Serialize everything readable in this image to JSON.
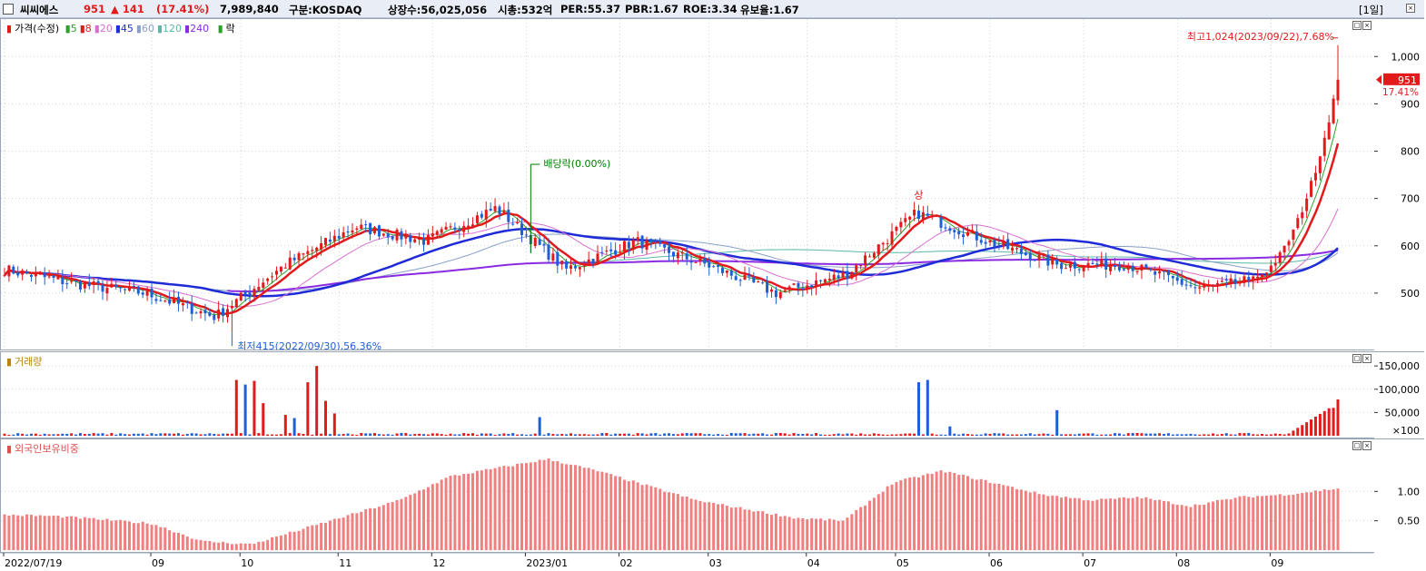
{
  "header": {
    "name": "씨씨에스",
    "price": "951",
    "change": "▲ 141",
    "change_pct": "(17.41%)",
    "volume": "7,989,840",
    "market": "구분:KOSDAQ",
    "shares": "상장수:56,025,056",
    "mcap": "시총:532억",
    "per": "PER:55.37",
    "pbr": "PBR:1.67",
    "roe": "ROE:3.34",
    "reserve": "유보율:1.67",
    "period": "[1일]"
  },
  "legend": {
    "price": "가격(수정)",
    "ma": [
      {
        "label": "5",
        "color": "#2ca02c"
      },
      {
        "label": "8",
        "color": "#e31a1c"
      },
      {
        "label": "20",
        "color": "#d86fd0"
      },
      {
        "label": "45",
        "color": "#1f2bd6"
      },
      {
        "label": "60",
        "color": "#8aa0c8"
      },
      {
        "label": "120",
        "color": "#5bb8a8"
      },
      {
        "label": "240",
        "color": "#8a2be2"
      }
    ],
    "drop": "락",
    "volume": "거래량",
    "foreign": "외국인보유비중"
  },
  "annotations": {
    "high": "최고1,024(2023/09/22),7.68%",
    "low": "최저415(2022/09/30),56.36%",
    "dividend": "배당락(0.00%)",
    "limit_up": "상"
  },
  "price_box": {
    "value": "951",
    "pct": "17.41%"
  },
  "colors": {
    "up": "#e31a1c",
    "down": "#1f5fd6",
    "foreign_bar": "#f08080"
  },
  "chart_data": [
    {
      "type": "candlestick",
      "title": "",
      "ylim": [
        400,
        1060
      ],
      "y_ticks": [
        "1,000",
        "900",
        "800",
        "700",
        "600",
        "500"
      ],
      "y_tick_values": [
        1000,
        900,
        800,
        700,
        600,
        500
      ],
      "anchor_closes": [
        [
          "2022/07/19",
          550
        ],
        [
          "2022/08",
          520
        ],
        [
          "2022/09",
          500
        ],
        [
          "2022/09/30",
          450
        ],
        [
          "2022/10",
          560
        ],
        [
          "2022/10 mid",
          640
        ],
        [
          "2022/11",
          610
        ],
        [
          "2022/12",
          680
        ],
        [
          "2022/12 end",
          550
        ],
        [
          "2023/01",
          610
        ],
        [
          "2023/02",
          560
        ],
        [
          "2023/03",
          500
        ],
        [
          "2023/04",
          540
        ],
        [
          "2023/05",
          670
        ],
        [
          "2023/05 mid",
          610
        ],
        [
          "2023/06",
          560
        ],
        [
          "2023/07",
          560
        ],
        [
          "2023/08",
          510
        ],
        [
          "2023/09",
          530
        ],
        [
          "2023/09/22",
          951
        ]
      ],
      "high": 1024,
      "low": 415,
      "last": 951,
      "x_ticks": [
        "2022/07/19",
        "09",
        "10",
        "11",
        "12",
        "2023/01",
        "02",
        "03",
        "04",
        "05",
        "06",
        "07",
        "08",
        "09"
      ]
    },
    {
      "type": "bar",
      "title": "",
      "y_ticks": [
        "150,000",
        "100,000",
        "50,000",
        "×100"
      ],
      "y_tick_values": [
        150000,
        100000,
        50000
      ]
    },
    {
      "type": "bar",
      "title": "",
      "y_ticks": [
        "1.00",
        "0.50"
      ],
      "y_tick_values": [
        1.0,
        0.5
      ]
    }
  ]
}
